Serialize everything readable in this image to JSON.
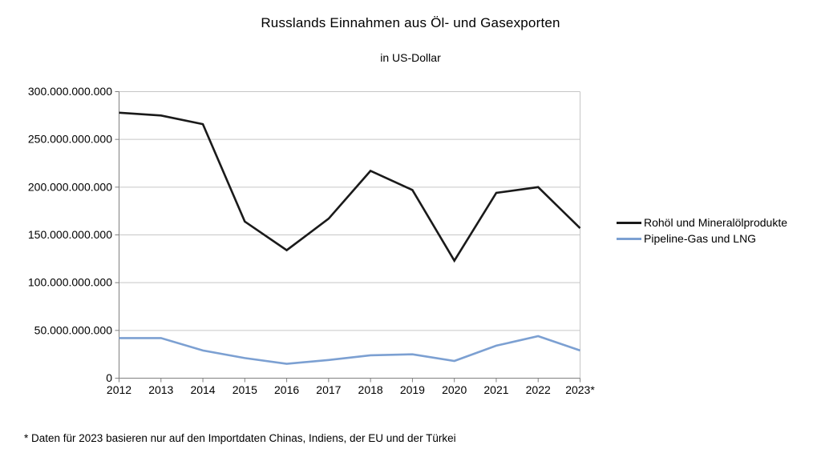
{
  "chart_data": {
    "type": "line",
    "title": "Russlands Einnahmen aus Öl- und Gasexporten",
    "subtitle": "in US-Dollar",
    "footnote": "* Daten für 2023 basieren nur auf den Importdaten Chinas, Indiens, der EU und der Türkei",
    "categories": [
      "2012",
      "2013",
      "2014",
      "2015",
      "2016",
      "2017",
      "2018",
      "2019",
      "2020",
      "2021",
      "2022",
      "2023*"
    ],
    "series": [
      {
        "name": "Rohöl und Mineralölprodukte",
        "color": "#1a1a1a",
        "values": [
          278000000000,
          275000000000,
          266000000000,
          164000000000,
          134000000000,
          167000000000,
          217000000000,
          197000000000,
          123000000000,
          194000000000,
          200000000000,
          157000000000
        ]
      },
      {
        "name": "Pipeline-Gas und LNG",
        "color": "#7ca0d2",
        "values": [
          42000000000,
          42000000000,
          29000000000,
          21000000000,
          15000000000,
          19000000000,
          24000000000,
          25000000000,
          18000000000,
          34000000000,
          44000000000,
          29000000000
        ]
      }
    ],
    "ylim": [
      0,
      300000000000
    ],
    "y_tick_interval": 50000000000,
    "y_tick_labels": [
      "300.000.000.000",
      "250.000.000.000",
      "200.000.000.000",
      "150.000.000.000",
      "100.000.000.000",
      "50.000.000.000",
      "0"
    ],
    "grid": "horizontal",
    "legend_position": "right",
    "colors": {
      "gridline": "#c6c6c6",
      "axis": "#808080",
      "text": "#000000",
      "background": "#ffffff"
    }
  }
}
